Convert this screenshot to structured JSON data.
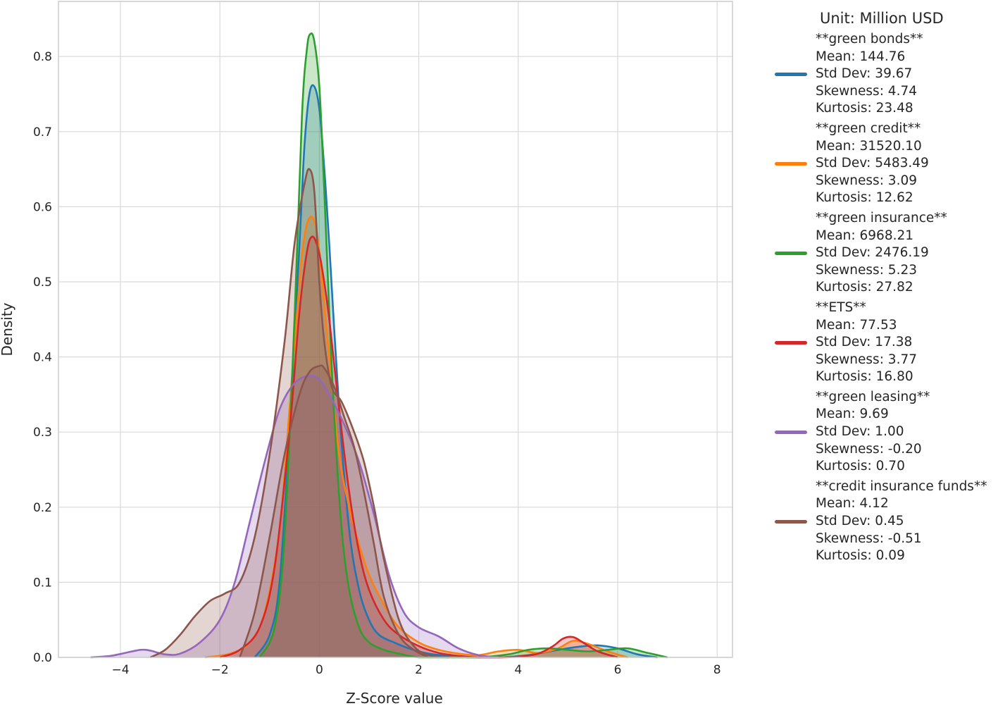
{
  "chart_data": {
    "type": "area",
    "xlabel": "Z-Score value",
    "ylabel": "Density",
    "xlim": [
      -5.2,
      8.3
    ],
    "ylim": [
      0,
      0.86
    ],
    "xticks": [
      -4,
      -2,
      0,
      2,
      4,
      6,
      8
    ],
    "xtick_labels": [
      "−4",
      "−2",
      "0",
      "2",
      "4",
      "6",
      "8"
    ],
    "yticks": [
      0.0,
      0.1,
      0.2,
      0.3,
      0.4,
      0.5,
      0.6,
      0.7,
      0.8
    ],
    "ytick_labels": [
      "0.0",
      "0.1",
      "0.2",
      "0.3",
      "0.4",
      "0.5",
      "0.6",
      "0.7",
      "0.8"
    ],
    "grid": true,
    "legend_position": "outside-right",
    "legend_title": "Unit: Million USD",
    "series": [
      {
        "name": "**green bonds**",
        "color": "#1f77b4",
        "stats": [
          "Mean: 144.76",
          "Std Dev: 39.67",
          "Skewness: 4.74",
          "Kurtosis: 23.48"
        ],
        "x": [
          -1.3,
          -1.0,
          -0.8,
          -0.6,
          -0.4,
          -0.3,
          -0.2,
          -0.1,
          0.0,
          0.1,
          0.2,
          0.4,
          0.6,
          0.8,
          1.0,
          1.2,
          1.5,
          1.8,
          2.2,
          2.6,
          3.0,
          3.6,
          4.2,
          4.8,
          5.2,
          5.6,
          6.0,
          6.4,
          6.8
        ],
        "y": [
          0.0,
          0.03,
          0.1,
          0.3,
          0.55,
          0.68,
          0.75,
          0.76,
          0.73,
          0.65,
          0.55,
          0.33,
          0.17,
          0.09,
          0.05,
          0.03,
          0.02,
          0.012,
          0.005,
          0.002,
          0.0,
          0.0,
          0.003,
          0.01,
          0.014,
          0.016,
          0.012,
          0.004,
          0.0
        ]
      },
      {
        "name": "**green credit**",
        "color": "#ff7f0e",
        "stats": [
          "Mean: 31520.10",
          "Std Dev: 5483.49",
          "Skewness: 3.09",
          "Kurtosis: 12.62"
        ],
        "x": [
          -2.3,
          -1.8,
          -1.4,
          -1.1,
          -0.8,
          -0.6,
          -0.4,
          -0.3,
          -0.2,
          -0.1,
          0.0,
          0.2,
          0.4,
          0.6,
          0.8,
          1.0,
          1.3,
          1.6,
          2.0,
          2.4,
          2.8,
          3.2,
          3.6,
          4.0,
          4.4,
          4.8,
          5.1,
          5.4,
          5.8,
          6.2
        ],
        "y": [
          0.0,
          0.005,
          0.02,
          0.06,
          0.17,
          0.33,
          0.5,
          0.56,
          0.585,
          0.58,
          0.54,
          0.4,
          0.27,
          0.2,
          0.15,
          0.11,
          0.07,
          0.04,
          0.02,
          0.01,
          0.005,
          0.003,
          0.008,
          0.01,
          0.006,
          0.012,
          0.022,
          0.018,
          0.008,
          0.0
        ]
      },
      {
        "name": "**green insurance**",
        "color": "#2ca02c",
        "stats": [
          "Mean: 6968.21",
          "Std Dev: 2476.19",
          "Skewness: 5.23",
          "Kurtosis: 27.82"
        ],
        "x": [
          -1.2,
          -0.9,
          -0.7,
          -0.5,
          -0.35,
          -0.25,
          -0.18,
          -0.1,
          0.0,
          0.1,
          0.2,
          0.3,
          0.45,
          0.6,
          0.8,
          1.0,
          1.3,
          1.6,
          2.0,
          2.6,
          3.2,
          3.8,
          4.2,
          4.6,
          5.0,
          5.4,
          5.8,
          6.2,
          6.6,
          7.0
        ],
        "y": [
          0.0,
          0.04,
          0.16,
          0.45,
          0.72,
          0.81,
          0.83,
          0.82,
          0.76,
          0.62,
          0.46,
          0.32,
          0.17,
          0.09,
          0.04,
          0.02,
          0.01,
          0.005,
          0.0,
          0.0,
          0.0,
          0.004,
          0.01,
          0.012,
          0.01,
          0.008,
          0.01,
          0.012,
          0.006,
          0.0
        ]
      },
      {
        "name": "**ETS**",
        "color": "#d62728",
        "stats": [
          "Mean: 77.53",
          "Std Dev: 17.38",
          "Skewness: 3.77",
          "Kurtosis: 16.80"
        ],
        "x": [
          -2.0,
          -1.6,
          -1.2,
          -0.9,
          -0.6,
          -0.4,
          -0.25,
          -0.15,
          -0.05,
          0.05,
          0.2,
          0.4,
          0.6,
          0.8,
          1.0,
          1.3,
          1.6,
          2.0,
          2.4,
          2.8,
          3.2,
          3.6,
          4.0,
          4.4,
          4.7,
          4.9,
          5.1,
          5.3,
          5.6,
          6.0
        ],
        "y": [
          0.0,
          0.01,
          0.04,
          0.12,
          0.3,
          0.46,
          0.54,
          0.56,
          0.55,
          0.52,
          0.45,
          0.33,
          0.22,
          0.14,
          0.09,
          0.05,
          0.03,
          0.015,
          0.006,
          0.002,
          0.0,
          0.0,
          0.001,
          0.005,
          0.015,
          0.025,
          0.027,
          0.02,
          0.008,
          0.0
        ]
      },
      {
        "name": "**green leasing**",
        "color": "#9467bd",
        "stats": [
          "Mean: 9.69",
          "Std Dev: 1.00",
          "Skewness: -0.20",
          "Kurtosis: 0.70"
        ],
        "x": [
          -4.6,
          -4.2,
          -3.9,
          -3.6,
          -3.4,
          -3.1,
          -2.8,
          -2.4,
          -2.0,
          -1.7,
          -1.4,
          -1.1,
          -0.8,
          -0.5,
          -0.2,
          0.0,
          0.2,
          0.5,
          0.8,
          1.1,
          1.4,
          1.7,
          2.0,
          2.4,
          2.8,
          3.2,
          3.6
        ],
        "y": [
          0.0,
          0.002,
          0.006,
          0.01,
          0.009,
          0.004,
          0.005,
          0.02,
          0.05,
          0.1,
          0.18,
          0.26,
          0.33,
          0.365,
          0.375,
          0.37,
          0.35,
          0.31,
          0.26,
          0.19,
          0.11,
          0.06,
          0.04,
          0.028,
          0.012,
          0.003,
          0.0
        ]
      },
      {
        "name": "**credit insurance funds**",
        "color": "#8c564b",
        "stats": [
          "Mean: 4.12",
          "Std Dev: 0.45",
          "Skewness: -0.51",
          "Kurtosis: 0.09"
        ],
        "x": [
          -3.4,
          -3.1,
          -2.8,
          -2.5,
          -2.2,
          -1.9,
          -1.6,
          -1.3,
          -1.0,
          -0.7,
          -0.5,
          -0.3,
          -0.2,
          -0.1,
          0.0,
          0.1,
          0.25,
          0.45,
          0.7,
          0.9,
          1.1,
          1.3,
          1.6,
          1.9,
          2.2,
          2.6
        ],
        "y": [
          0.0,
          0.01,
          0.03,
          0.055,
          0.075,
          0.085,
          0.1,
          0.16,
          0.27,
          0.42,
          0.55,
          0.63,
          0.65,
          0.62,
          0.5,
          0.42,
          0.36,
          0.34,
          0.3,
          0.26,
          0.2,
          0.13,
          0.05,
          0.015,
          0.003,
          0.0
        ]
      },
      {
        "name": "",
        "color": "#8c564b",
        "stats": [],
        "x": [
          -1.6,
          -1.3,
          -1.0,
          -0.7,
          -0.4,
          -0.2,
          0.0,
          0.1,
          0.3,
          0.5,
          0.7,
          0.9,
          1.1,
          1.3,
          1.6,
          1.9,
          2.2
        ],
        "y": [
          0.0,
          0.06,
          0.16,
          0.27,
          0.35,
          0.38,
          0.388,
          0.385,
          0.36,
          0.32,
          0.28,
          0.22,
          0.15,
          0.08,
          0.03,
          0.01,
          0.0
        ]
      }
    ]
  }
}
